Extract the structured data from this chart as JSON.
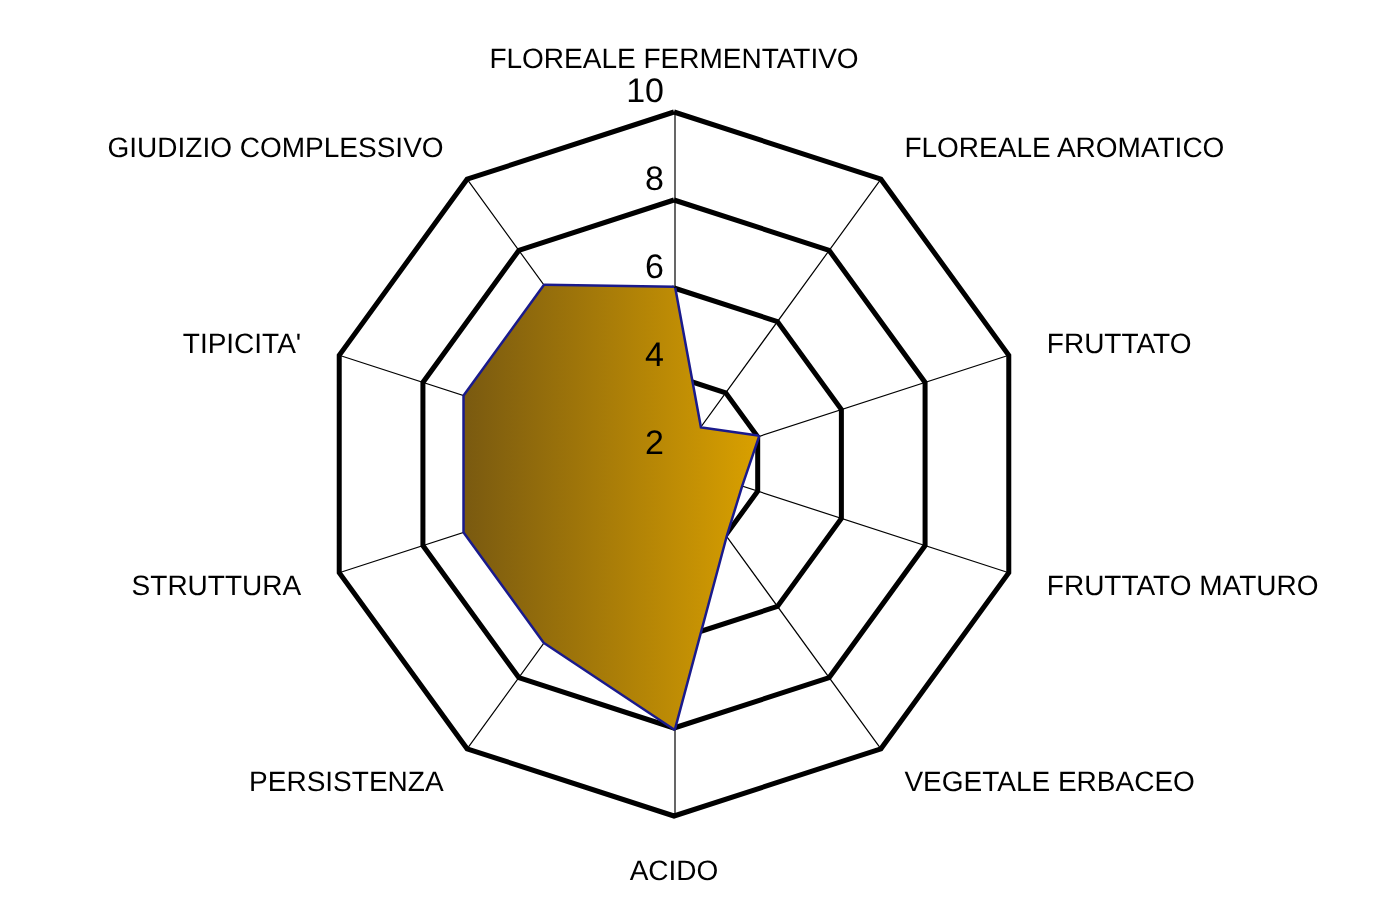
{
  "chart_data": {
    "type": "radar",
    "categories": [
      "FLOREALE FERMENTATIVO",
      "FLOREALE AROMATICO",
      "FRUTTATO",
      "FRUTTATO MATURO",
      "VEGETALE ERBACEO",
      "ACIDO",
      "PERSISTENZA",
      "STRUTTURA",
      "TIPICITA'",
      "GIUDIZIO COMPLESSIVO"
    ],
    "series": [
      {
        "color": "#d9a000",
        "values": [
          6,
          3,
          4,
          3.6,
          4,
          8,
          7,
          7,
          7,
          7
        ]
      }
    ],
    "ylim": [
      2,
      10
    ],
    "yticks": [
      2,
      4,
      6,
      8,
      10
    ],
    "grid": true,
    "marker": "none"
  }
}
